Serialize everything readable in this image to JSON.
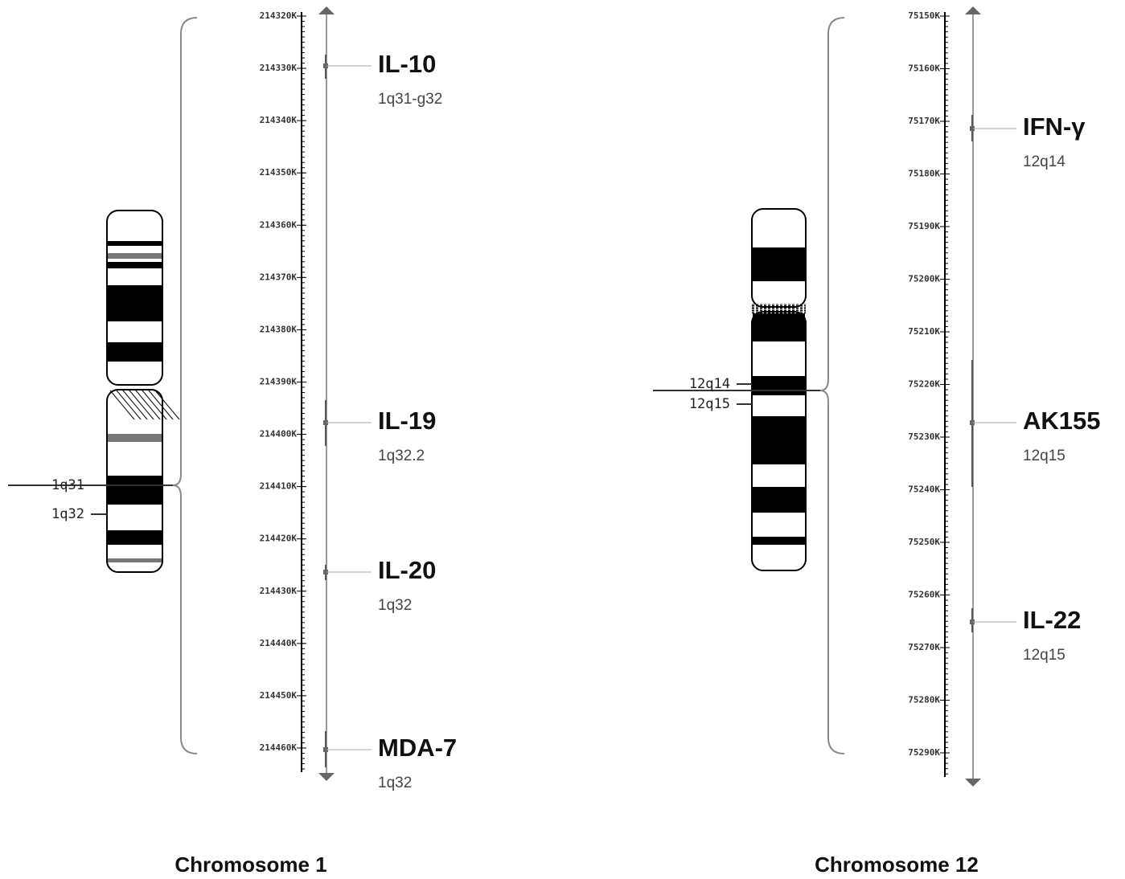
{
  "panels": [
    {
      "caption": "Chromosome 1",
      "bands": [
        "1q31",
        "1q32"
      ],
      "scale": [
        "214320K",
        "214330K",
        "214340K",
        "214350K",
        "214360K",
        "214370K",
        "214380K",
        "214390K",
        "214400K",
        "214410K",
        "214420K",
        "214430K",
        "214440K",
        "214450K",
        "214460K"
      ],
      "genes": [
        {
          "name": "IL-10",
          "location": "1q31-g32"
        },
        {
          "name": "IL-19",
          "location": "1q32.2"
        },
        {
          "name": "IL-20",
          "location": "1q32"
        },
        {
          "name": "MDA-7",
          "location": "1q32"
        }
      ]
    },
    {
      "caption": "Chromosome 12",
      "bands": [
        "12q14",
        "12q15"
      ],
      "scale": [
        "75150K",
        "75160K",
        "75170K",
        "75180K",
        "75190K",
        "75200K",
        "75210K",
        "75220K",
        "75230K",
        "75240K",
        "75250K",
        "75260K",
        "75270K",
        "75280K",
        "75290K"
      ],
      "genes": [
        {
          "name": "IFN-γ",
          "location": "12q14"
        },
        {
          "name": "AK155",
          "location": "12q15"
        },
        {
          "name": "IL-22",
          "location": "12q15"
        }
      ]
    }
  ]
}
